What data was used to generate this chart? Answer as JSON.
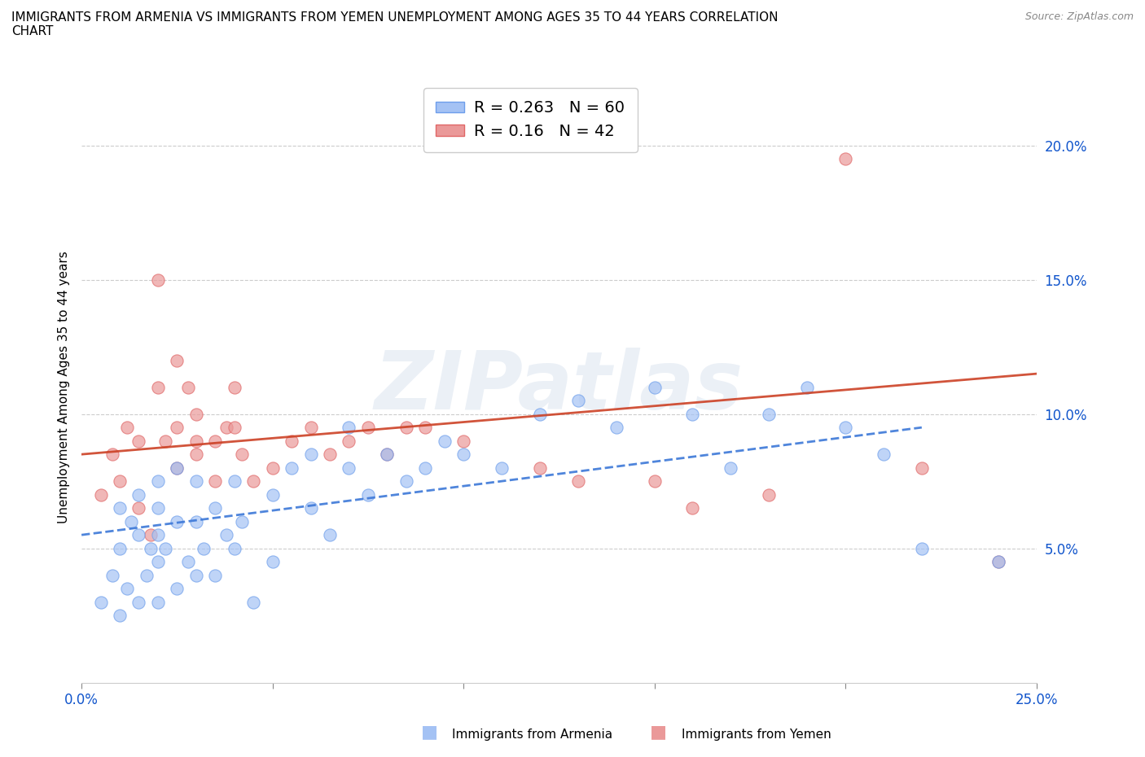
{
  "title": "IMMIGRANTS FROM ARMENIA VS IMMIGRANTS FROM YEMEN UNEMPLOYMENT AMONG AGES 35 TO 44 YEARS CORRELATION\nCHART",
  "source_text": "Source: ZipAtlas.com",
  "ylabel": "Unemployment Among Ages 35 to 44 years",
  "xlim": [
    0.0,
    0.25
  ],
  "ylim": [
    0.0,
    0.22
  ],
  "xticks": [
    0.0,
    0.05,
    0.1,
    0.15,
    0.2,
    0.25
  ],
  "xticklabels": [
    "0.0%",
    "",
    "",
    "",
    "",
    "25.0%"
  ],
  "yticks": [
    0.05,
    0.1,
    0.15,
    0.2
  ],
  "yticklabels": [
    "5.0%",
    "10.0%",
    "15.0%",
    "20.0%"
  ],
  "armenia_color": "#a4c2f4",
  "armenia_edge": "#6d9eeb",
  "yemen_color": "#ea9999",
  "yemen_edge": "#e06666",
  "armenia_R": 0.263,
  "armenia_N": 60,
  "yemen_R": 0.16,
  "yemen_N": 42,
  "armenia_line_color": "#3c78d8",
  "yemen_line_color": "#cc4125",
  "legend_R_color": "#1155cc",
  "legend_N_color": "#cc0000",
  "armenia_scatter_x": [
    0.005,
    0.008,
    0.01,
    0.01,
    0.01,
    0.012,
    0.013,
    0.015,
    0.015,
    0.015,
    0.017,
    0.018,
    0.02,
    0.02,
    0.02,
    0.02,
    0.02,
    0.022,
    0.025,
    0.025,
    0.025,
    0.028,
    0.03,
    0.03,
    0.03,
    0.032,
    0.035,
    0.035,
    0.038,
    0.04,
    0.04,
    0.042,
    0.045,
    0.05,
    0.05,
    0.055,
    0.06,
    0.06,
    0.065,
    0.07,
    0.07,
    0.075,
    0.08,
    0.085,
    0.09,
    0.095,
    0.1,
    0.11,
    0.12,
    0.13,
    0.14,
    0.15,
    0.16,
    0.17,
    0.18,
    0.19,
    0.2,
    0.21,
    0.22,
    0.24
  ],
  "armenia_scatter_y": [
    0.03,
    0.04,
    0.025,
    0.05,
    0.065,
    0.035,
    0.06,
    0.03,
    0.055,
    0.07,
    0.04,
    0.05,
    0.03,
    0.045,
    0.055,
    0.065,
    0.075,
    0.05,
    0.035,
    0.06,
    0.08,
    0.045,
    0.04,
    0.06,
    0.075,
    0.05,
    0.04,
    0.065,
    0.055,
    0.05,
    0.075,
    0.06,
    0.03,
    0.045,
    0.07,
    0.08,
    0.065,
    0.085,
    0.055,
    0.08,
    0.095,
    0.07,
    0.085,
    0.075,
    0.08,
    0.09,
    0.085,
    0.08,
    0.1,
    0.105,
    0.095,
    0.11,
    0.1,
    0.08,
    0.1,
    0.11,
    0.095,
    0.085,
    0.05,
    0.045
  ],
  "yemen_scatter_x": [
    0.005,
    0.008,
    0.01,
    0.012,
    0.015,
    0.015,
    0.018,
    0.02,
    0.02,
    0.022,
    0.025,
    0.025,
    0.025,
    0.028,
    0.03,
    0.03,
    0.03,
    0.035,
    0.035,
    0.038,
    0.04,
    0.04,
    0.042,
    0.045,
    0.05,
    0.055,
    0.06,
    0.065,
    0.07,
    0.075,
    0.08,
    0.085,
    0.09,
    0.1,
    0.12,
    0.13,
    0.15,
    0.16,
    0.18,
    0.2,
    0.22,
    0.24
  ],
  "yemen_scatter_y": [
    0.07,
    0.085,
    0.075,
    0.095,
    0.065,
    0.09,
    0.055,
    0.11,
    0.15,
    0.09,
    0.12,
    0.08,
    0.095,
    0.11,
    0.09,
    0.1,
    0.085,
    0.09,
    0.075,
    0.095,
    0.095,
    0.11,
    0.085,
    0.075,
    0.08,
    0.09,
    0.095,
    0.085,
    0.09,
    0.095,
    0.085,
    0.095,
    0.095,
    0.09,
    0.08,
    0.075,
    0.075,
    0.065,
    0.07,
    0.195,
    0.08,
    0.045
  ],
  "armenia_trend_x0": 0.0,
  "armenia_trend_x1": 0.22,
  "armenia_trend_y0": 0.055,
  "armenia_trend_y1": 0.095,
  "yemen_trend_x0": 0.0,
  "yemen_trend_x1": 0.25,
  "yemen_trend_y0": 0.085,
  "yemen_trend_y1": 0.115
}
